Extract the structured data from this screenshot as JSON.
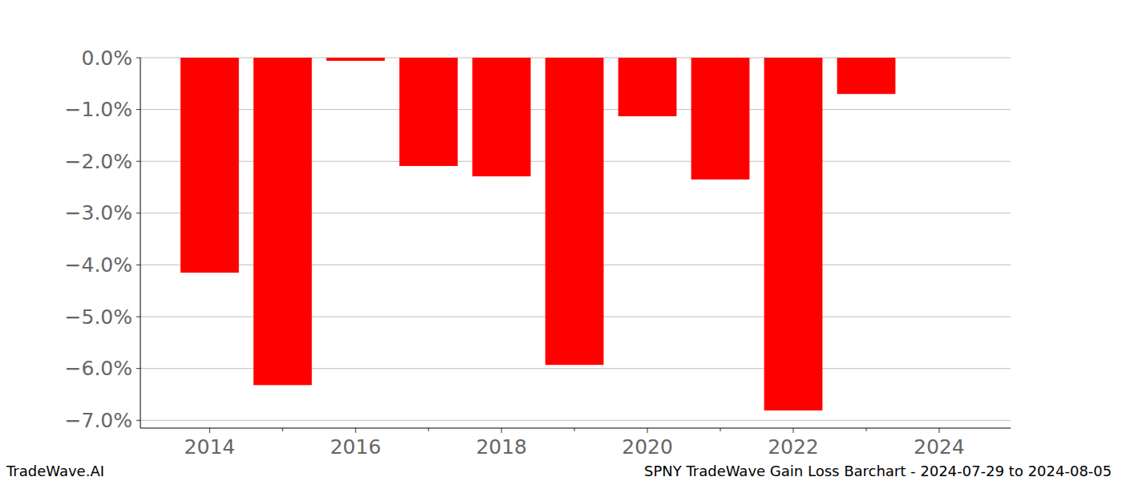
{
  "chart_data": {
    "type": "bar",
    "title": "SPNY TradeWave Gain Loss Barchart - 2024-07-29 to 2024-08-05",
    "annotations": [
      "TradeWave.AI"
    ],
    "x": [
      2014,
      2015,
      2016,
      2017,
      2018,
      2019,
      2020,
      2021,
      2022,
      2023
    ],
    "values": [
      -4.15,
      -6.32,
      -0.06,
      -2.09,
      -2.29,
      -5.93,
      -1.13,
      -2.35,
      -6.81,
      -0.7
    ],
    "color": "#ff0000",
    "xlim": [
      2013.05,
      2024.98
    ],
    "xticks": [
      2014,
      2016,
      2018,
      2020,
      2022,
      2024
    ],
    "ylim": [
      -7.15,
      0
    ],
    "yticks": [
      {
        "value": 0,
        "label": "0.0%"
      },
      {
        "value": -1,
        "label": "−1.0%"
      },
      {
        "value": -2,
        "label": "−2.0%"
      },
      {
        "value": -3,
        "label": "−3.0%"
      },
      {
        "value": -4,
        "label": "−4.0%"
      },
      {
        "value": -5,
        "label": "−5.0%"
      },
      {
        "value": -6,
        "label": "−6.0%"
      },
      {
        "value": -7,
        "label": "−7.0%"
      }
    ],
    "grid": true
  }
}
